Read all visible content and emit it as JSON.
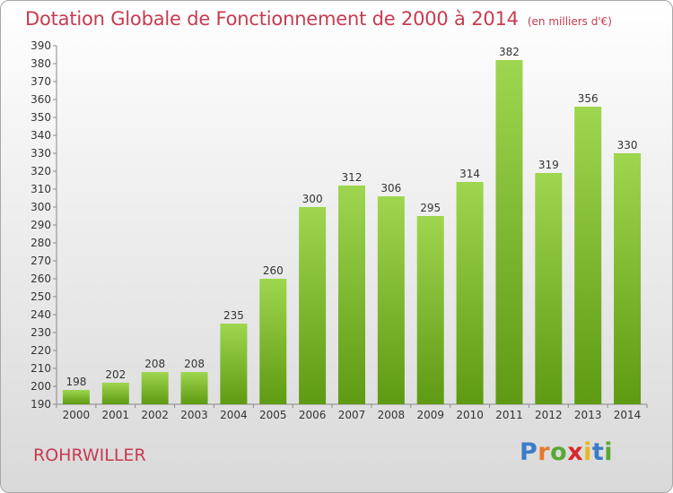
{
  "header": {
    "title": "Dotation Globale de Fonctionnement de 2000 à 2014",
    "subtitle": "(en milliers d'€)"
  },
  "footer": {
    "commune": "ROHRWILLER",
    "logo": [
      "P",
      "r",
      "o",
      "x",
      "i",
      "t",
      "i"
    ]
  },
  "colors": {
    "title": "#c83a50",
    "bar_light": "#9fd64f",
    "bar_dark": "#5e9a12",
    "logo": [
      "#3a7cc8",
      "#e8782a",
      "#58a832",
      "#d8282c",
      "#e8b820",
      "#3a7cc8",
      "#58a832"
    ]
  },
  "chart_data": {
    "type": "bar",
    "title": "Dotation Globale de Fonctionnement de 2000 à 2014",
    "categories": [
      "2000",
      "2001",
      "2002",
      "2003",
      "2004",
      "2005",
      "2006",
      "2007",
      "2008",
      "2009",
      "2010",
      "2011",
      "2012",
      "2013",
      "2014"
    ],
    "values": [
      198,
      202,
      208,
      208,
      235,
      260,
      300,
      312,
      306,
      295,
      314,
      382,
      319,
      356,
      330
    ],
    "ylim": [
      190,
      390
    ],
    "ytick_step": 10,
    "grid": false,
    "legend": "none"
  }
}
